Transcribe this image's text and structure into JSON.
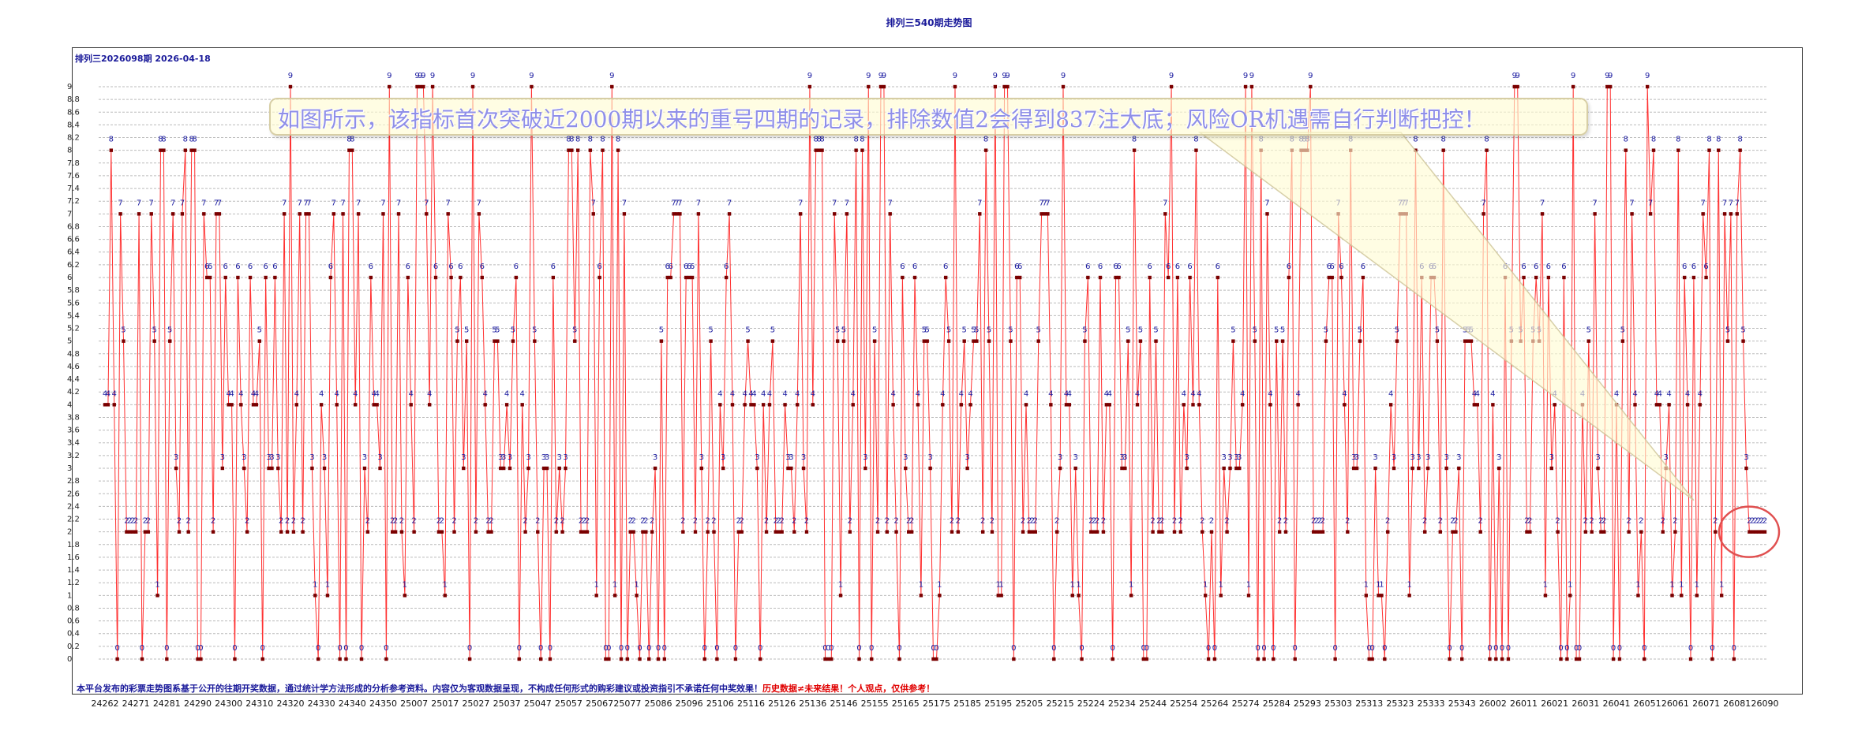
{
  "title": "排列三540期走势图",
  "period_label": "排列三2026098期   2026-04-18",
  "annotation": "如图所示，该指标首次突破近2000期以来的重号四期的记录，排除数值2会得到837注大底；风险OR机遇需自行判断把控！",
  "disclaimer": {
    "main": "本平台发布的彩票走势图系基于公开的往期开奖数据，通过统计学方法形成的分析参考资料。内容仅为客观数据呈现，不构成任何形式的购彩建议或投资指引不承诺任何中奖效果！",
    "warning": "历史数据≠未来结果！个人观点，仅供参考！"
  },
  "colors": {
    "line": "#ff3030",
    "marker": "#7a0000",
    "value_label": "#1a1aa0",
    "grid": "#bbbbbb",
    "highlight_circle": "#e05050"
  },
  "chart_data": {
    "type": "line",
    "title": "排列三540期走势图",
    "xlabel": "",
    "ylabel": "",
    "ylim": [
      0,
      9
    ],
    "ytick_step": 0.2,
    "grid": true,
    "x_tick_labels": [
      "24262",
      "24271",
      "24281",
      "24290",
      "24300",
      "24310",
      "24320",
      "24330",
      "24340",
      "24350",
      "25007",
      "25017",
      "25027",
      "25037",
      "25047",
      "25057",
      "25067",
      "25077",
      "25086",
      "25096",
      "25106",
      "25116",
      "25126",
      "25136",
      "25146",
      "25155",
      "25165",
      "25175",
      "25185",
      "25195",
      "25205",
      "25215",
      "25224",
      "25234",
      "25244",
      "25254",
      "25264",
      "25274",
      "25284",
      "25293",
      "25303",
      "25313",
      "25323",
      "25333",
      "25343",
      "26002",
      "26011",
      "26021",
      "26031",
      "26041",
      "26051",
      "26061",
      "26071",
      "26081",
      "26090"
    ],
    "series": [
      {
        "values": [
          4,
          4,
          8,
          4,
          0,
          7,
          5,
          2,
          2,
          2,
          2,
          7,
          0,
          2,
          2,
          7,
          5,
          1,
          8,
          8,
          0,
          5,
          7,
          3,
          2,
          7,
          8,
          2,
          8,
          8,
          0,
          0,
          7,
          6,
          6,
          2,
          7,
          7,
          3,
          6,
          4,
          4,
          0,
          6,
          4,
          3,
          2,
          6,
          4,
          4,
          5,
          0,
          6,
          3,
          3,
          6,
          3,
          2,
          7,
          2,
          9,
          2,
          4,
          7,
          2,
          7,
          7,
          3,
          1,
          0,
          4,
          3,
          1,
          6,
          7,
          4,
          0,
          7,
          0,
          8,
          8,
          4,
          7,
          0,
          3,
          2,
          6,
          4,
          4,
          3,
          7,
          0,
          9,
          2,
          2,
          7,
          2,
          1,
          6,
          4,
          2,
          9,
          9,
          9,
          7,
          4,
          9,
          6,
          2,
          2,
          1,
          7,
          6,
          2,
          5,
          6,
          3,
          5,
          0,
          9,
          2,
          7,
          6,
          4,
          2,
          2,
          5,
          5,
          3,
          3,
          4,
          3,
          5,
          6,
          0,
          4,
          2,
          3,
          9,
          5,
          2,
          0,
          3,
          3,
          0,
          6,
          2,
          3,
          2,
          3,
          8,
          8,
          5,
          8,
          2,
          2,
          2,
          8,
          7,
          1,
          6,
          8,
          0,
          0,
          9,
          1,
          8,
          0,
          7,
          0,
          2,
          2,
          1,
          0,
          2,
          2,
          0,
          2,
          3,
          0,
          5,
          0,
          6,
          6,
          7,
          7,
          7,
          2,
          6,
          6,
          6,
          2,
          7,
          3,
          0,
          2,
          5,
          2,
          0,
          4,
          3,
          6,
          7,
          4,
          0,
          2,
          2,
          4,
          5,
          4,
          4,
          3,
          0,
          4,
          2,
          4,
          5,
          2,
          2,
          2,
          4,
          3,
          3,
          2,
          4,
          7,
          3,
          2,
          9,
          4,
          8,
          8,
          8,
          0,
          0,
          0,
          7,
          5,
          1,
          5,
          7,
          2,
          4,
          8,
          0,
          8,
          3,
          9,
          0,
          5,
          2,
          9,
          9,
          2,
          7,
          4,
          2,
          0,
          6,
          3,
          2,
          2,
          6,
          4,
          1,
          5,
          5,
          3,
          0,
          0,
          1,
          4,
          6,
          5,
          2,
          9,
          2,
          4,
          5,
          3,
          4,
          5,
          5,
          7,
          2,
          8,
          5,
          2,
          9,
          1,
          1,
          9,
          9,
          5,
          0,
          6,
          6,
          2,
          4,
          2,
          2,
          2,
          5,
          7,
          7,
          7,
          4,
          0,
          2,
          3,
          9,
          4,
          4,
          1,
          3,
          1,
          0,
          5,
          6,
          2,
          2,
          2,
          6,
          2,
          4,
          4,
          0,
          6,
          6,
          3,
          3,
          5,
          1,
          8,
          4,
          5,
          0,
          0,
          6,
          2,
          5,
          2,
          2,
          7,
          6,
          9,
          2,
          6,
          2,
          4,
          3,
          6,
          4,
          8,
          4,
          2,
          1,
          0,
          2,
          0,
          6,
          1,
          3,
          2,
          3,
          5,
          3,
          3,
          4,
          9,
          1,
          9,
          5,
          0,
          8,
          0,
          7,
          4,
          0,
          5,
          2,
          5,
          2,
          6,
          8,
          0,
          4,
          8,
          8,
          8,
          9,
          2,
          2,
          2,
          2,
          5,
          6,
          6,
          0,
          7,
          6,
          4,
          2,
          8,
          3,
          3,
          5,
          6,
          1,
          0,
          0,
          3,
          1,
          1,
          0,
          2,
          4,
          3,
          5,
          7,
          7,
          7,
          1,
          3,
          8,
          3,
          6,
          2,
          3,
          6,
          6,
          5,
          2,
          8,
          3,
          0,
          2,
          2,
          3,
          0,
          5,
          5,
          5,
          4,
          4,
          2,
          7,
          8,
          0,
          4,
          0,
          3,
          0,
          6,
          0,
          5,
          9,
          9,
          5,
          6,
          2,
          2,
          5,
          6,
          5,
          7,
          1,
          6,
          3,
          4,
          2,
          0,
          6,
          0,
          1,
          9,
          0,
          0,
          4,
          2,
          5,
          2,
          7,
          3,
          2,
          2,
          9,
          9,
          0,
          4,
          0,
          5,
          8,
          2,
          7,
          4,
          1,
          2,
          0,
          9,
          7,
          8,
          4,
          4,
          2,
          3,
          4,
          1,
          2,
          8,
          1,
          6,
          4,
          0,
          6,
          1,
          4,
          7,
          6,
          8,
          0,
          2,
          8,
          1,
          7,
          5,
          7,
          0,
          7,
          8,
          5,
          3,
          2,
          2,
          2,
          2,
          2,
          2
        ]
      }
    ]
  }
}
